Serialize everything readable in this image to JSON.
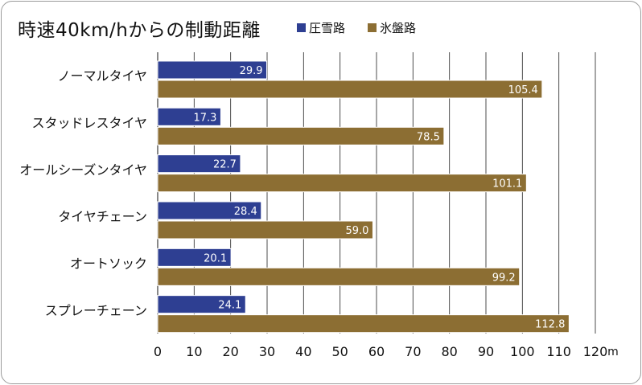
{
  "chart_data": {
    "type": "bar",
    "orientation": "horizontal",
    "title": "時速40km/hからの制動距離",
    "categories": [
      "ノーマルタイヤ",
      "スタッドレスタイヤ",
      "オールシーズンタイヤ",
      "タイヤチェーン",
      "オートソック",
      "スプレーチェーン"
    ],
    "series": [
      {
        "name": "圧雪路",
        "color": "#2e3f92",
        "values": [
          29.9,
          17.3,
          22.7,
          28.4,
          20.1,
          24.1
        ],
        "labels": [
          "29.9",
          "17.3",
          "22.7",
          "28.4",
          "20.1",
          "24.1"
        ]
      },
      {
        "name": "氷盤路",
        "color": "#8c6e33",
        "values": [
          105.4,
          78.5,
          101.1,
          59.0,
          99.2,
          112.8
        ],
        "labels": [
          "105.4",
          "78.5",
          "101.1",
          "59.0",
          "99.2",
          "112.8"
        ]
      }
    ],
    "xlim": [
      0,
      120
    ],
    "xticks": [
      "0",
      "10",
      "20",
      "30",
      "40",
      "50",
      "60",
      "70",
      "80",
      "90",
      "100",
      "110",
      "120"
    ],
    "xunit": "m",
    "grid": true,
    "legend": "top"
  }
}
